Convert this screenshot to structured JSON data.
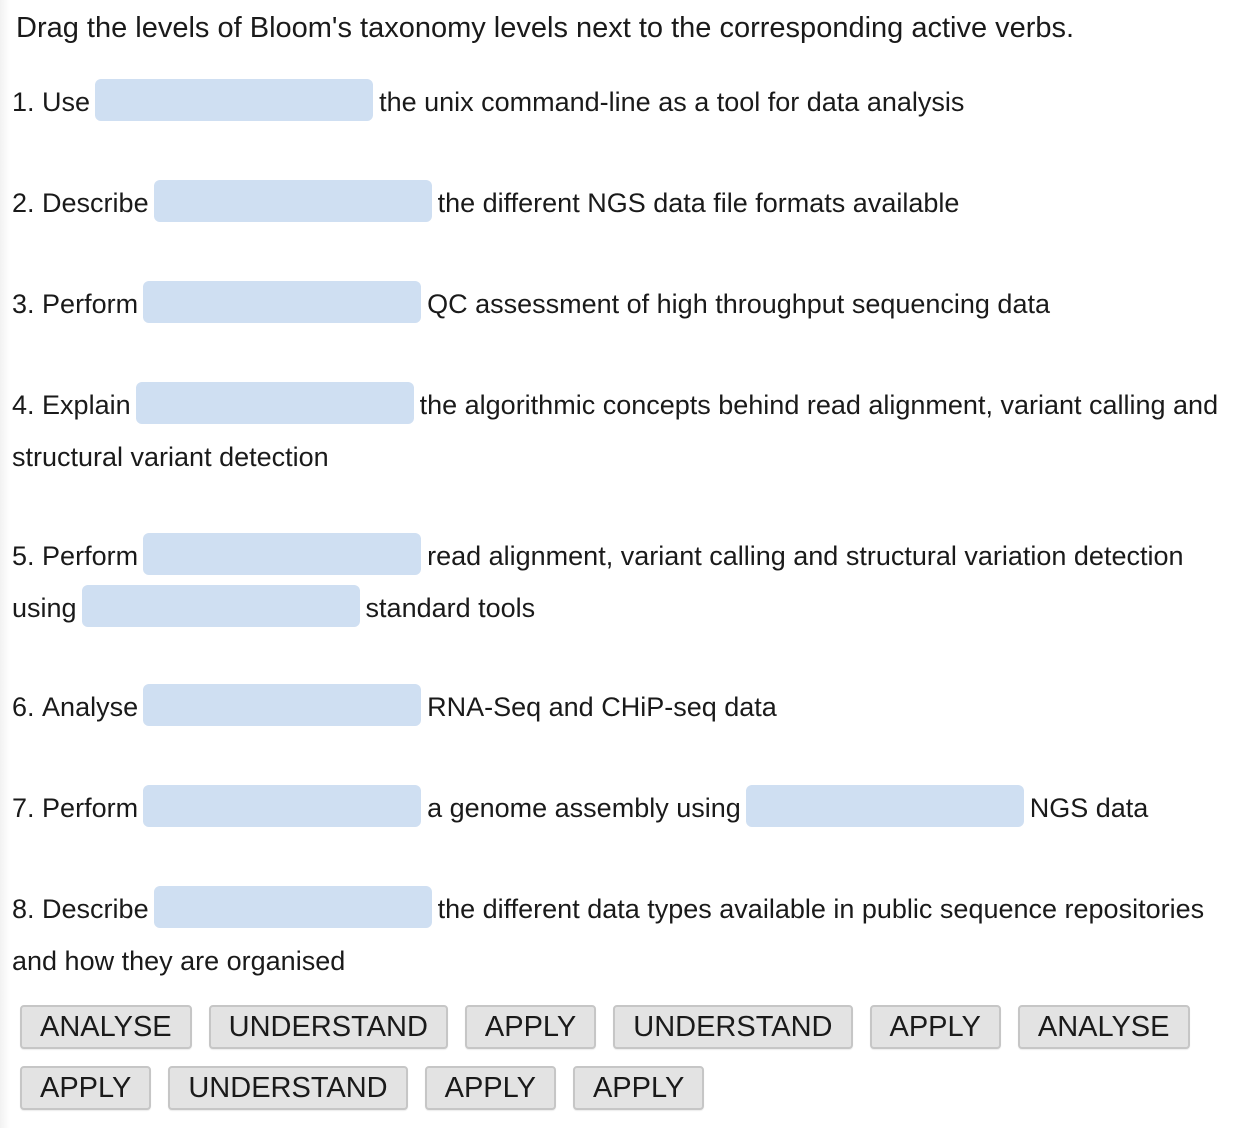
{
  "instruction": "Drag the levels of Bloom's taxonomy levels next to the corresponding active verbs.",
  "questions": [
    {
      "number": "1.",
      "verb": "Use",
      "text_after": "the unix command-line as a tool for data analysis"
    },
    {
      "number": "2.",
      "verb": "Describe",
      "text_after": "the different NGS data file formats available"
    },
    {
      "number": "3.",
      "verb": "Perform",
      "text_after": "QC assessment of high throughput sequencing data"
    },
    {
      "number": "4.",
      "verb": "Explain",
      "text_after": "the algorithmic concepts behind read alignment, variant calling and structural variant detection"
    },
    {
      "number": "5.",
      "verb": "Perform",
      "text_after": "read alignment, variant calling and structural variation detection using",
      "text_after_2": "standard tools"
    },
    {
      "number": "6.",
      "verb": "Analyse",
      "text_after": "RNA-Seq and CHiP-seq data"
    },
    {
      "number": "7.",
      "verb": "Perform",
      "text_after": "a genome assembly using",
      "text_after_2": "NGS data"
    },
    {
      "number": "8.",
      "verb": "Describe",
      "text_after": "the different data types available in public sequence repositories and how they are organised"
    }
  ],
  "drag_items": {
    "row1": [
      "ANALYSE",
      "UNDERSTAND",
      "APPLY",
      "UNDERSTAND",
      "APPLY",
      "ANALYSE"
    ],
    "row2": [
      "APPLY",
      "UNDERSTAND",
      "APPLY",
      "APPLY"
    ]
  },
  "colors": {
    "drop_zone": "#cfdff2",
    "chip_background": "#e3e3e3",
    "chip_border": "#c6c6c6"
  }
}
